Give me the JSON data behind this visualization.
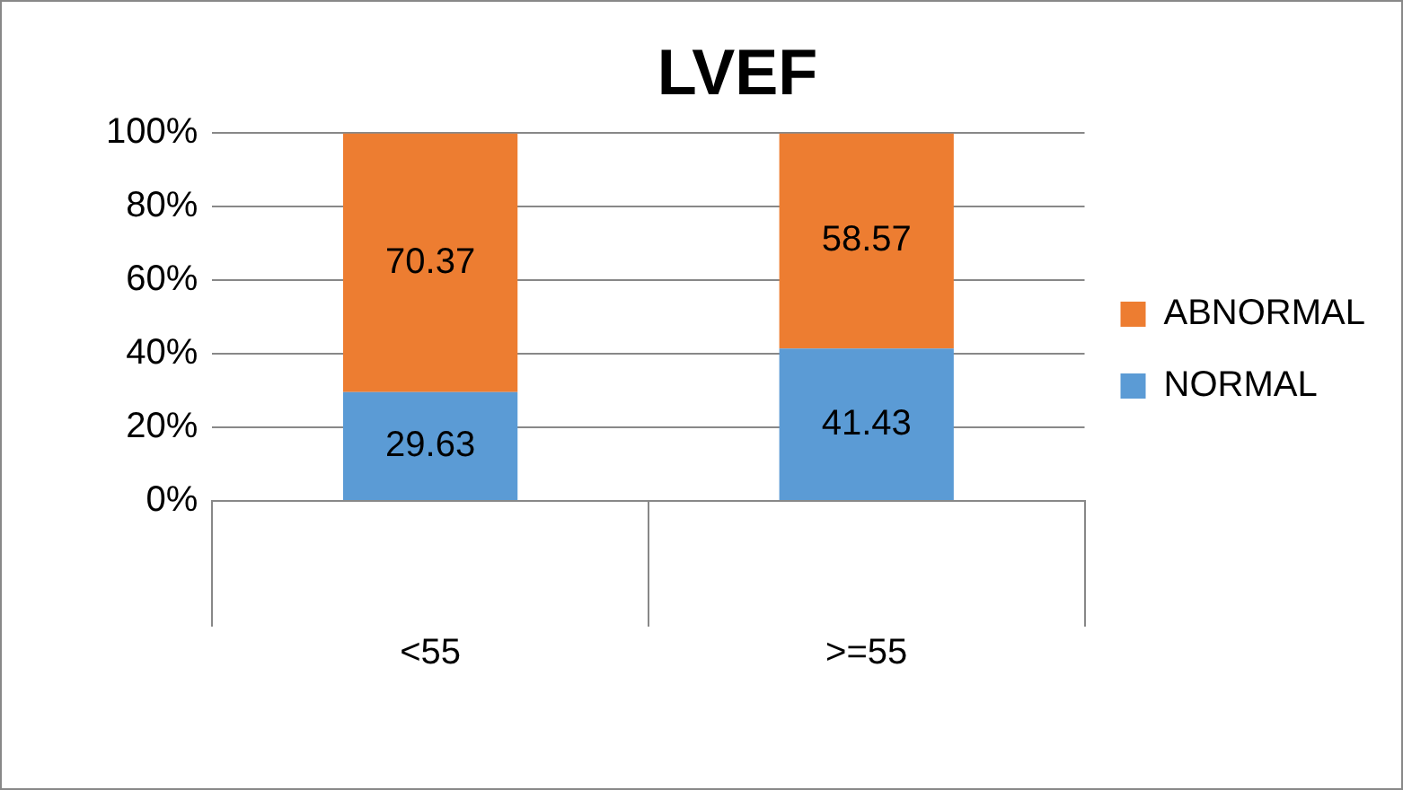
{
  "chart_data": {
    "type": "bar",
    "title": "LVEF",
    "categories": [
      "<55",
      ">=55"
    ],
    "stacked": true,
    "series": [
      {
        "name": "NORMAL",
        "color": "#5b9bd5",
        "values": [
          29.63,
          41.43
        ]
      },
      {
        "name": "ABNORMAL",
        "color": "#ed7d31",
        "values": [
          70.37,
          58.57
        ]
      }
    ],
    "ylim": [
      0,
      100
    ],
    "yticks": [
      {
        "value": 0,
        "label": "0%"
      },
      {
        "value": 20,
        "label": "20%"
      },
      {
        "value": 40,
        "label": "40%"
      },
      {
        "value": 60,
        "label": "60%"
      },
      {
        "value": 80,
        "label": "80%"
      },
      {
        "value": 100,
        "label": "100%"
      }
    ],
    "grid": "y",
    "legend": "right",
    "data_labels": true
  }
}
